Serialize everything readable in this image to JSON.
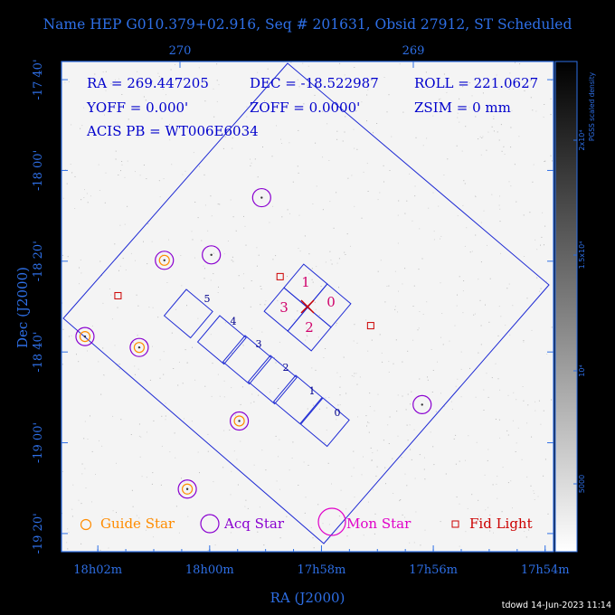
{
  "title": "Name HEP G010.379+02.916, Seq # 201631, Obsid 27912, ST Scheduled",
  "signature": "tdowd 14-Jun-2023 11:14",
  "colors": {
    "frame": "#2e6fe6",
    "detector": "#1f2bd4",
    "guide": "#ff8c00",
    "acq": "#8a00d0",
    "mon": "#e000c8",
    "fid": "#cc0000",
    "chip_label": "#00008b",
    "aimpoint_chip_label": "#d0006a",
    "info_text": "#0000cc"
  },
  "info": {
    "line1": [
      "RA = 269.447205",
      "DEC = -18.522987",
      "ROLL = 221.0627"
    ],
    "line2": [
      "YOFF =   0.000'",
      "ZOFF =  0.0000'",
      "ZSIM = 0 mm"
    ],
    "line3": "ACIS PB = WT006E6034"
  },
  "legend": [
    {
      "icon": "guide-star-icon",
      "label": "Guide Star"
    },
    {
      "icon": "acq-star-icon",
      "label": "Acq Star"
    },
    {
      "icon": "mon-star-icon",
      "label": "Mon Star"
    },
    {
      "icon": "fid-light-icon",
      "label": "Fid Light"
    }
  ],
  "colorbar": {
    "title": "PGSS scaled density",
    "ticks": [
      "2x10⁴",
      "1.5x10⁴",
      "10⁴",
      "5000"
    ]
  },
  "chart_data": {
    "type": "scatter",
    "title": "Name HEP G010.379+02.916, Seq # 201631, Obsid 27912, ST Scheduled",
    "xlabel": "RA (J2000)",
    "ylabel": "Dec (J2000)",
    "x_ticks_bottom": [
      "18h02m",
      "18h00m",
      "17h58m",
      "17h56m",
      "17h54m"
    ],
    "x_ticks_top": [
      "270",
      "269"
    ],
    "y_ticks": [
      "-17 40'",
      "-18 00'",
      "-18 20'",
      "-18 40'",
      "-19 00'",
      "-19 20'"
    ],
    "x_range_ra_min": [
      -0.65,
      8.15
    ],
    "y_range_dec_deg": [
      -19.4,
      -17.6
    ],
    "top_axis_deg": [
      270,
      269
    ],
    "pointing": {
      "ra_deg": 269.447205,
      "dec_deg": -18.522987
    },
    "guide_stars": [
      {
        "ra_min": 1.19,
        "dec_deg": -18.33
      },
      {
        "ra_min": -0.23,
        "dec_deg": -18.61
      },
      {
        "ra_min": 0.74,
        "dec_deg": -18.65
      },
      {
        "ra_min": 2.53,
        "dec_deg": -18.92
      },
      {
        "ra_min": 1.6,
        "dec_deg": -19.17
      }
    ],
    "acq_stars": [
      {
        "ra_min": 1.19,
        "dec_deg": -18.33
      },
      {
        "ra_min": 2.03,
        "dec_deg": -18.31
      },
      {
        "ra_min": 2.93,
        "dec_deg": -18.1
      },
      {
        "ra_min": -0.23,
        "dec_deg": -18.61
      },
      {
        "ra_min": 0.74,
        "dec_deg": -18.65
      },
      {
        "ra_min": 2.53,
        "dec_deg": -18.92
      },
      {
        "ra_min": 5.8,
        "dec_deg": -18.86
      },
      {
        "ra_min": 1.6,
        "dec_deg": -19.17
      }
    ],
    "mon_stars": [],
    "fid_lights": [
      {
        "ra_min": 0.36,
        "dec_deg": -18.46
      },
      {
        "ra_min": 3.26,
        "dec_deg": -18.39
      },
      {
        "ra_min": 4.88,
        "dec_deg": -18.57
      }
    ],
    "ccd_labels": [
      "0",
      "1",
      "2",
      "3",
      "0",
      "1",
      "2",
      "3",
      "4",
      "5"
    ],
    "grid": false,
    "legend_position": "bottom"
  }
}
